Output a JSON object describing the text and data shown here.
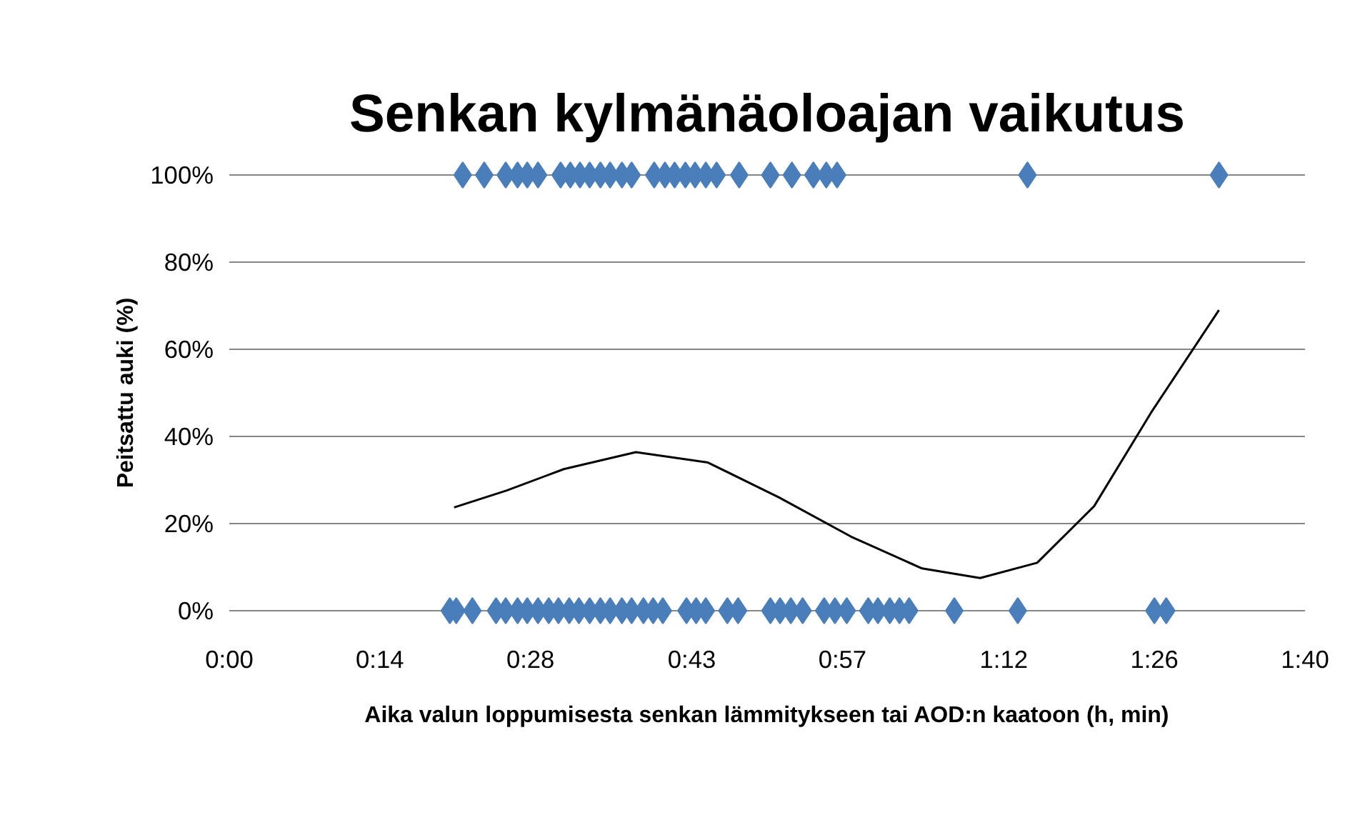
{
  "chart_data": {
    "type": "scatter",
    "title": "Senkan kylmänäoloajan vaikutus",
    "xlabel": "Aika valun loppumisesta senkan lämmitykseen tai AOD:n kaatoon (h, min)",
    "ylabel": "Peitsattu auki (%)",
    "xlim": [
      0,
      100
    ],
    "xticks": [
      {
        "value": 0,
        "label": "0:00"
      },
      {
        "value": 14,
        "label": "0:14"
      },
      {
        "value": 28,
        "label": "0:28"
      },
      {
        "value": 43,
        "label": "0:43"
      },
      {
        "value": 57,
        "label": "0:57"
      },
      {
        "value": 72,
        "label": "1:12"
      },
      {
        "value": 86,
        "label": "1:26"
      },
      {
        "value": 100,
        "label": "1:40"
      }
    ],
    "ylim": [
      0,
      100
    ],
    "yticks": [
      {
        "value": 0,
        "label": "0%"
      },
      {
        "value": 20,
        "label": "20%"
      },
      {
        "value": 40,
        "label": "40%"
      },
      {
        "value": 60,
        "label": "60%"
      },
      {
        "value": 80,
        "label": "80%"
      },
      {
        "value": 100,
        "label": "100%"
      }
    ],
    "grid": "y",
    "marker": "diamond",
    "series": [
      {
        "color": "#4a7ebb",
        "x": [
          21.7,
          23.7,
          25.7,
          26.8,
          27.7,
          28.7,
          30.8,
          31.7,
          32.6,
          33.5,
          34.5,
          35.4,
          36.5,
          37.4,
          39.5,
          40.5,
          41.4,
          42.4,
          43.3,
          44.3,
          45.3,
          47.4,
          50.3,
          52.3,
          54.3,
          55.5,
          56.5,
          74.2,
          92.0,
          20.5,
          21.1,
          22.6,
          24.8,
          25.7,
          26.8,
          27.7,
          28.7,
          29.7,
          30.6,
          31.6,
          32.5,
          33.5,
          34.5,
          35.4,
          36.5,
          37.4,
          38.5,
          39.4,
          40.3,
          42.5,
          43.4,
          44.3,
          46.3,
          47.3,
          50.3,
          51.2,
          52.2,
          53.3,
          55.3,
          56.3,
          57.4,
          59.4,
          60.3,
          61.4,
          62.3,
          63.2,
          67.4,
          73.3,
          86.0,
          87.1
        ],
        "values": [
          100,
          100,
          100,
          100,
          100,
          100,
          100,
          100,
          100,
          100,
          100,
          100,
          100,
          100,
          100,
          100,
          100,
          100,
          100,
          100,
          100,
          100,
          100,
          100,
          100,
          100,
          100,
          100,
          100,
          0,
          0,
          0,
          0,
          0,
          0,
          0,
          0,
          0,
          0,
          0,
          0,
          0,
          0,
          0,
          0,
          0,
          0,
          0,
          0,
          0,
          0,
          0,
          0,
          0,
          0,
          0,
          0,
          0,
          0,
          0,
          0,
          0,
          0,
          0,
          0,
          0,
          0,
          0,
          0,
          0
        ]
      },
      {
        "type": "line",
        "color": "#000000",
        "marker": "none",
        "x": [
          20.9,
          25.8,
          31.1,
          37.8,
          44.5,
          51.1,
          57.8,
          64.4,
          69.8,
          75.1,
          80.4,
          85.7,
          92.0
        ],
        "values": [
          23.7,
          27.6,
          32.5,
          36.4,
          34,
          26,
          17,
          9.7,
          7.5,
          11,
          24,
          45.5,
          69
        ]
      }
    ]
  }
}
